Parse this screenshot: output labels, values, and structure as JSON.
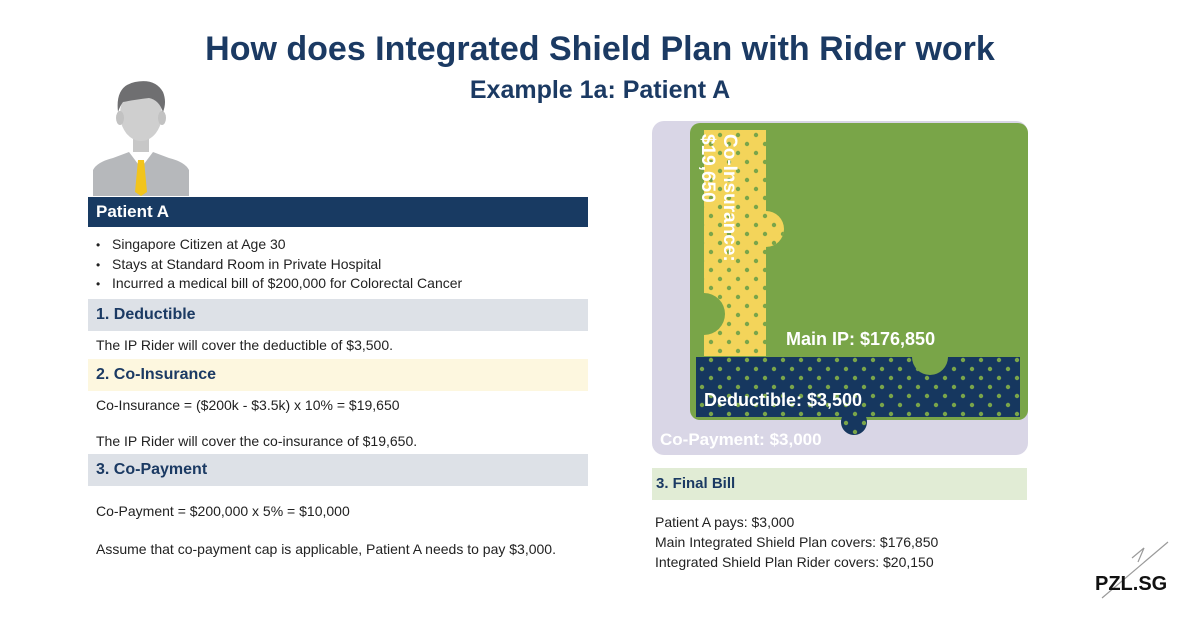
{
  "header": {
    "title": "How does Integrated Shield Plan with Rider work",
    "subtitle": "Example 1a: Patient A"
  },
  "patient": {
    "label": "Patient A",
    "bullets": [
      "Singapore Citizen at Age 30",
      "Stays at Standard Room in Private Hospital",
      "Incurred a medical bill of $200,000 for Colorectal Cancer"
    ]
  },
  "sections": {
    "deductible": {
      "title": "1. Deductible",
      "text": "The IP Rider will cover the deductible of $3,500."
    },
    "coinsurance": {
      "title": "2. Co-Insurance",
      "formula": "Co-Insurance = ($200k - $3.5k) x 10% = $19,650",
      "text": "The IP Rider will cover the co-insurance of $19,650."
    },
    "copayment": {
      "title": "3. Co-Payment",
      "formula": "Co-Payment = $200,000 x 5% = $10,000",
      "text": "Assume that co-payment cap is applicable, Patient A needs to pay $3,000."
    }
  },
  "puzzle": {
    "coinsurance_label": "Co-Insurance:",
    "coinsurance_value": "$19,650",
    "main_ip_label": "Main IP: $176,850",
    "deductible_label": "Deductible: $3,500",
    "copayment_label": "Co-Payment: $3,000",
    "colors": {
      "main_ip": "#79a548",
      "coinsurance": "#f3d45a",
      "deductible": "#16375f",
      "copayment": "#d9d6e6"
    }
  },
  "final_bill": {
    "title": "3. Final Bill",
    "lines": [
      "Patient A pays: $3,000",
      "Main Integrated Shield Plan covers: $176,850",
      "Integrated Shield Plan Rider covers: $20,150"
    ]
  },
  "brand": {
    "logo": "PZL.SG"
  }
}
